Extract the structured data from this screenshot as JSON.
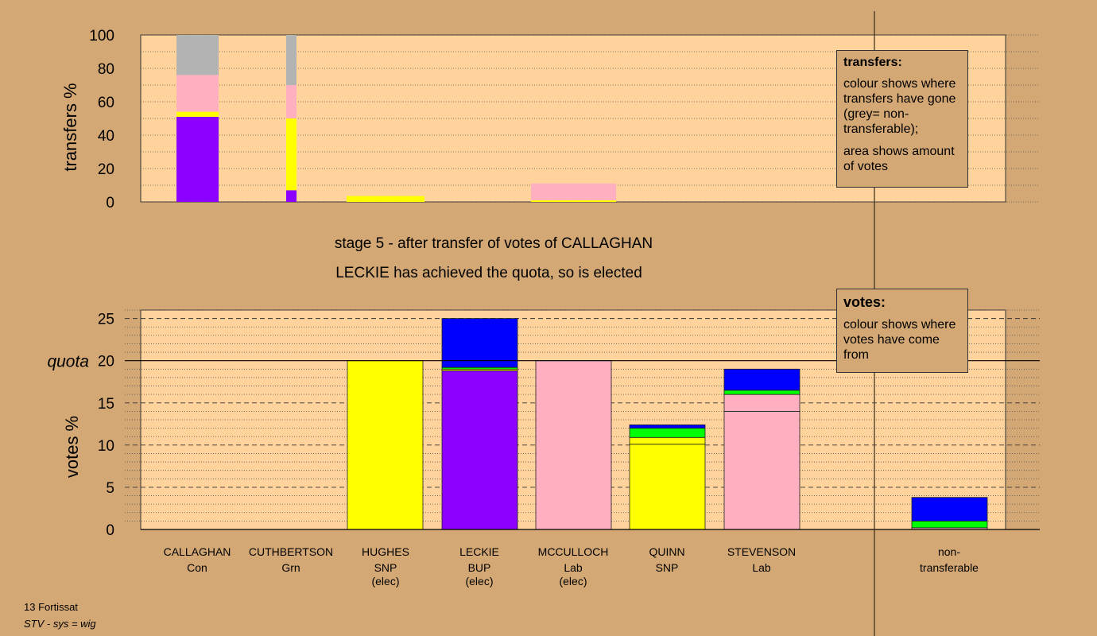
{
  "colors": {
    "background": "#d4a874",
    "plot_background": "#ffd39b",
    "Con": "#0000ff",
    "Grn": "#00ff00",
    "SNP": "#ffff00",
    "BUP": "#8b00ff",
    "Lab": "#ffb0c0",
    "non_transferable": "#b3b3b3"
  },
  "stage": {
    "line1": "stage 5 - after transfer of votes of CALLAGHAN",
    "line2": "LECKIE has achieved the quota, so is elected"
  },
  "transfers_legend": {
    "title": "transfers:",
    "line1": "colour shows where transfers have gone (grey= non-transferable);",
    "line2": "area shows amount of votes"
  },
  "votes_legend": {
    "title": "votes:",
    "line1": "colour shows where votes have come from"
  },
  "footer": {
    "line1": "13 Fortissat",
    "line2": "STV - sys = wig"
  },
  "chart_data": [
    {
      "type": "bar",
      "name": "transfers",
      "ylabel": "transfers %",
      "ylim": [
        0,
        100
      ],
      "yticks": [
        0,
        20,
        40,
        60,
        80,
        100
      ],
      "grid": true,
      "legend_position": "top-right",
      "bars": [
        {
          "candidate": "CALLAGHAN",
          "width_share": 1.0,
          "segments": [
            {
              "to": "BUP",
              "value": 51
            },
            {
              "to": "SNP",
              "value": 3
            },
            {
              "to": "Lab",
              "value": 22
            },
            {
              "to": "non_transferable",
              "value": 24
            }
          ]
        },
        {
          "candidate": "CUTHBERTSON",
          "width_share": 0.25,
          "segments": [
            {
              "to": "BUP",
              "value": 7
            },
            {
              "to": "SNP",
              "value": 43
            },
            {
              "to": "Lab",
              "value": 20
            },
            {
              "to": "non_transferable",
              "value": 30
            }
          ]
        },
        {
          "candidate": "HUGHES",
          "width_share": 1.8,
          "segments": [
            {
              "to": "SNP",
              "value": 3.5
            }
          ]
        },
        {
          "candidate": "MCCULLOCH",
          "width_share": 2.0,
          "segments": [
            {
              "to": "SNP",
              "value": 1
            },
            {
              "to": "Lab",
              "value": 10
            }
          ]
        }
      ]
    },
    {
      "type": "bar",
      "name": "votes",
      "ylabel": "votes %",
      "ylim": [
        0,
        26
      ],
      "yticks": [
        0,
        5,
        10,
        15,
        20,
        25
      ],
      "quota": 20,
      "quota_label": "quota",
      "grid": true,
      "legend_position": "top-right",
      "candidates": [
        {
          "name": "CALLAGHAN",
          "party": "Con",
          "elected": "",
          "segments": []
        },
        {
          "name": "CUTHBERTSON",
          "party": "Grn",
          "elected": "",
          "segments": []
        },
        {
          "name": "HUGHES",
          "party": "SNP",
          "elected": "(elec)",
          "segments": [
            {
              "from": "SNP",
              "value": 20
            }
          ]
        },
        {
          "name": "LECKIE",
          "party": "BUP",
          "elected": "(elec)",
          "segments": [
            {
              "from": "BUP",
              "value": 18.8
            },
            {
              "from": "SNP",
              "value": 0.2
            },
            {
              "from": "Grn",
              "value": 0.2
            },
            {
              "from": "Con",
              "value": 5.8
            }
          ]
        },
        {
          "name": "MCCULLOCH",
          "party": "Lab",
          "elected": "(elec)",
          "segments": [
            {
              "from": "Lab",
              "value": 20
            }
          ]
        },
        {
          "name": "QUINN",
          "party": "SNP",
          "elected": "",
          "segments": [
            {
              "from": "SNP",
              "value": 10.1
            },
            {
              "from": "SNP",
              "value": 0.8
            },
            {
              "from": "Grn",
              "value": 1.1
            },
            {
              "from": "Con",
              "value": 0.4
            }
          ]
        },
        {
          "name": "STEVENSON",
          "party": "Lab",
          "elected": "",
          "segments": [
            {
              "from": "Lab",
              "value": 14
            },
            {
              "from": "Lab",
              "value": 2
            },
            {
              "from": "Grn",
              "value": 0.5
            },
            {
              "from": "Con",
              "value": 2.5
            }
          ]
        }
      ],
      "non_transferable": {
        "label_line1": "non-",
        "label_line2": "transferable",
        "segments": [
          {
            "from": "Lab",
            "value": 0.2
          },
          {
            "from": "Grn",
            "value": 0.8
          },
          {
            "from": "Con",
            "value": 2.8
          }
        ]
      }
    }
  ]
}
